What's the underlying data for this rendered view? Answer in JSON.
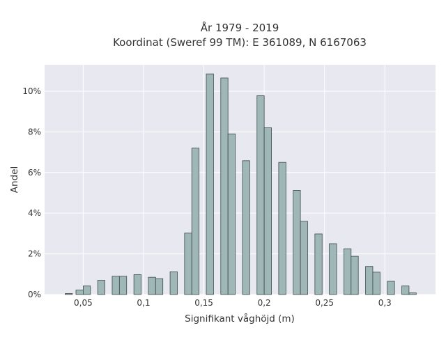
{
  "chart_data": {
    "type": "bar",
    "title": "År 1979 - 2019",
    "subtitle": "Koordinat (Sweref 99 TM): E 361089, N 6167063",
    "xlabel": "Signifikant våghöjd (m)",
    "ylabel": "Andel",
    "xlim": [
      0.018,
      0.342
    ],
    "ylim": [
      0,
      11.3
    ],
    "x_ticks": [
      {
        "value": 0.05,
        "label": "0,05"
      },
      {
        "value": 0.1,
        "label": "0,1"
      },
      {
        "value": 0.15,
        "label": "0,15"
      },
      {
        "value": 0.2,
        "label": "0,2"
      },
      {
        "value": 0.25,
        "label": "0,25"
      },
      {
        "value": 0.3,
        "label": "0,3"
      }
    ],
    "y_ticks": [
      {
        "value": 0,
        "label": "0%"
      },
      {
        "value": 2,
        "label": "2%"
      },
      {
        "value": 4,
        "label": "4%"
      },
      {
        "value": 6,
        "label": "6%"
      },
      {
        "value": 8,
        "label": "8%"
      },
      {
        "value": 10,
        "label": "10%"
      }
    ],
    "bar_width": 0.006,
    "grid": true,
    "bar_color": "#9fb7b7",
    "bar_edge_color": "#3d4a4a",
    "plot_background": "#e8e8f0",
    "grid_color": "#ffffff",
    "bins": [
      {
        "x": 0.038,
        "value": 0.05
      },
      {
        "x": 0.047,
        "value": 0.22
      },
      {
        "x": 0.053,
        "value": 0.42
      },
      {
        "x": 0.065,
        "value": 0.7
      },
      {
        "x": 0.077,
        "value": 0.9
      },
      {
        "x": 0.083,
        "value": 0.9
      },
      {
        "x": 0.095,
        "value": 0.98
      },
      {
        "x": 0.107,
        "value": 0.85
      },
      {
        "x": 0.113,
        "value": 0.78
      },
      {
        "x": 0.125,
        "value": 1.12
      },
      {
        "x": 0.137,
        "value": 3.02
      },
      {
        "x": 0.143,
        "value": 7.2
      },
      {
        "x": 0.155,
        "value": 10.85
      },
      {
        "x": 0.167,
        "value": 10.65
      },
      {
        "x": 0.173,
        "value": 7.9
      },
      {
        "x": 0.185,
        "value": 6.58
      },
      {
        "x": 0.197,
        "value": 9.78
      },
      {
        "x": 0.203,
        "value": 8.2
      },
      {
        "x": 0.215,
        "value": 6.5
      },
      {
        "x": 0.227,
        "value": 5.12
      },
      {
        "x": 0.233,
        "value": 3.6
      },
      {
        "x": 0.245,
        "value": 2.98
      },
      {
        "x": 0.257,
        "value": 2.5
      },
      {
        "x": 0.269,
        "value": 2.25
      },
      {
        "x": 0.275,
        "value": 1.88
      },
      {
        "x": 0.287,
        "value": 1.38
      },
      {
        "x": 0.293,
        "value": 1.1
      },
      {
        "x": 0.305,
        "value": 0.65
      },
      {
        "x": 0.317,
        "value": 0.42
      },
      {
        "x": 0.323,
        "value": 0.08
      }
    ]
  }
}
